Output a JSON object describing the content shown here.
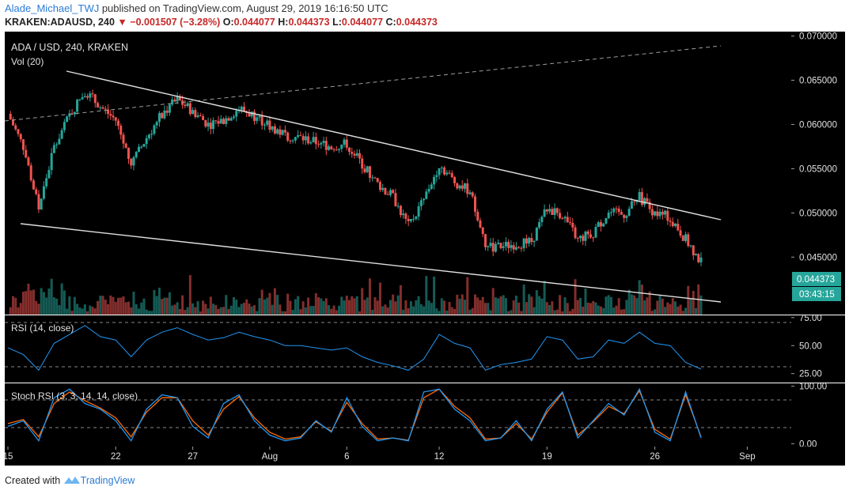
{
  "header": {
    "user": "Alade_Michael_TWJ",
    "published_text": " published on TradingView.com, August 29, 2019 16:16:50 UTC",
    "symbol": "KRAKEN:ADAUSD, 240",
    "change": "−0.001507 (−3.28%)",
    "o_label": "O:",
    "o": "0.044077",
    "h_label": "H:",
    "h": "0.044373",
    "l_label": "L:",
    "l": "0.044077",
    "c_label": "C:",
    "c": "0.044373"
  },
  "main": {
    "title": "ADA / USD, 240, KRAKEN",
    "vol_label": "Vol (20)",
    "price_label": "0.044373",
    "countdown": "03:43:15"
  },
  "rsi": {
    "label": "RSI (14, close)"
  },
  "stoch": {
    "label": "Stoch RSI (3, 3, 14, 14, close)"
  },
  "footer": {
    "created_with": "Created with",
    "brand": "TradingView"
  },
  "colors": {
    "up": "#26a69a",
    "down": "#ef5350",
    "rsi": "#2196f3",
    "k": "#2196f3",
    "d": "#ff6d00",
    "accent": "#2b7bd6"
  },
  "chart_data": [
    {
      "type": "line",
      "title": "ADA / USD, 240, KRAKEN",
      "y_ticks": [
        0.045,
        0.05,
        0.055,
        0.06,
        0.065,
        0.07
      ],
      "y_tick_labels": [
        "0.045000",
        "0.050000",
        "0.055000",
        "0.060000",
        "0.065000",
        "0.070000"
      ],
      "ylim": [
        0.0385,
        0.0705
      ],
      "x_tick_labels": [
        "15",
        "22",
        "27",
        "Aug",
        "6",
        "12",
        "19",
        "26",
        "Sep"
      ],
      "x": [
        "2019-07-15",
        "2019-07-16",
        "2019-07-17",
        "2019-07-18",
        "2019-07-19",
        "2019-07-20",
        "2019-07-21",
        "2019-07-22",
        "2019-07-23",
        "2019-07-24",
        "2019-07-25",
        "2019-07-26",
        "2019-07-27",
        "2019-07-28",
        "2019-07-29",
        "2019-07-30",
        "2019-07-31",
        "2019-08-01",
        "2019-08-02",
        "2019-08-03",
        "2019-08-04",
        "2019-08-05",
        "2019-08-06",
        "2019-08-07",
        "2019-08-08",
        "2019-08-09",
        "2019-08-10",
        "2019-08-11",
        "2019-08-12",
        "2019-08-13",
        "2019-08-14",
        "2019-08-15",
        "2019-08-16",
        "2019-08-17",
        "2019-08-18",
        "2019-08-19",
        "2019-08-20",
        "2019-08-21",
        "2019-08-22",
        "2019-08-23",
        "2019-08-24",
        "2019-08-25",
        "2019-08-26",
        "2019-08-27",
        "2019-08-28",
        "2019-08-29"
      ],
      "series": [
        {
          "values": [
            0.0612,
            0.0575,
            0.0505,
            0.0575,
            0.061,
            0.0638,
            0.062,
            0.0605,
            0.0555,
            0.0585,
            0.0612,
            0.0628,
            0.0615,
            0.06,
            0.0605,
            0.0618,
            0.061,
            0.0598,
            0.0588,
            0.0585,
            0.058,
            0.0575,
            0.0578,
            0.0555,
            0.0533,
            0.0518,
            0.0485,
            0.0515,
            0.0555,
            0.0535,
            0.0525,
            0.046,
            0.0462,
            0.0465,
            0.0468,
            0.0505,
            0.0498,
            0.047,
            0.0478,
            0.05,
            0.0498,
            0.0518,
            0.05,
            0.0495,
            0.047,
            0.0444
          ]
        }
      ]
    },
    {
      "type": "line",
      "title": "RSI (14, close)",
      "y_tick_labels": [
        "25.00",
        "50.00",
        "75.00"
      ],
      "ylim": [
        17,
        77
      ],
      "series": [
        {
          "values": [
            48,
            42,
            28,
            52,
            60,
            68,
            58,
            55,
            40,
            55,
            62,
            66,
            60,
            55,
            57,
            62,
            58,
            55,
            50,
            50,
            48,
            46,
            48,
            40,
            35,
            32,
            28,
            38,
            60,
            52,
            48,
            28,
            33,
            35,
            38,
            58,
            55,
            38,
            40,
            55,
            52,
            62,
            52,
            50,
            35,
            29
          ]
        }
      ]
    },
    {
      "type": "line",
      "title": "Stoch RSI (3, 3, 14, 14, close)",
      "y_tick_labels": [
        "0.00",
        "100.00"
      ],
      "ylim": [
        -5,
        105
      ],
      "series": [
        {
          "name": "K",
          "values": [
            30,
            40,
            5,
            80,
            95,
            70,
            60,
            40,
            5,
            60,
            85,
            80,
            30,
            10,
            70,
            85,
            40,
            15,
            5,
            10,
            40,
            20,
            80,
            30,
            5,
            10,
            5,
            90,
            95,
            60,
            40,
            5,
            10,
            40,
            5,
            60,
            90,
            10,
            40,
            70,
            50,
            95,
            20,
            5,
            90,
            10
          ]
        },
        {
          "name": "D",
          "values": [
            35,
            42,
            12,
            70,
            90,
            75,
            62,
            45,
            12,
            55,
            80,
            80,
            40,
            15,
            60,
            82,
            45,
            20,
            8,
            12,
            38,
            22,
            72,
            35,
            8,
            10,
            6,
            80,
            95,
            65,
            45,
            8,
            10,
            35,
            8,
            55,
            88,
            15,
            38,
            65,
            52,
            92,
            25,
            8,
            85,
            12
          ]
        }
      ]
    }
  ]
}
